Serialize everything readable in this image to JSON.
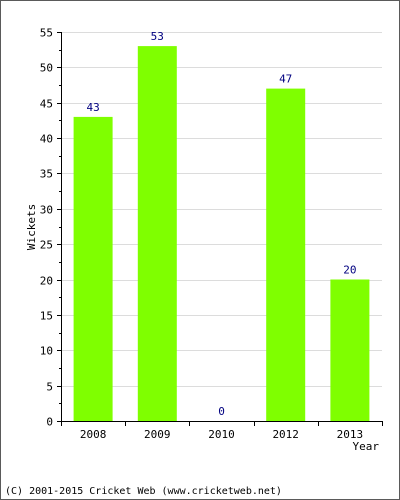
{
  "chart_data": {
    "type": "bar",
    "categories": [
      "2008",
      "2009",
      "2010",
      "2012",
      "2013"
    ],
    "values": [
      43,
      53,
      0,
      47,
      20
    ],
    "data_labels": [
      "43",
      "53",
      "0",
      "47",
      "20"
    ],
    "ylabel": "Wickets",
    "xlabel": "Year",
    "ylim": [
      0,
      55
    ],
    "yticks": [
      0,
      5,
      10,
      15,
      20,
      25,
      30,
      35,
      40,
      45,
      50,
      55
    ],
    "grid": true,
    "bar_color": "#7fff00",
    "label_color": "#000080"
  },
  "footer": "(C) 2001-2015 Cricket Web (www.cricketweb.net)"
}
